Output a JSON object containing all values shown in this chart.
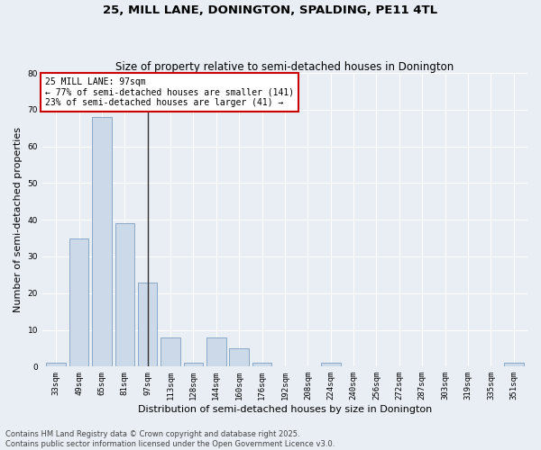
{
  "title": "25, MILL LANE, DONINGTON, SPALDING, PE11 4TL",
  "subtitle": "Size of property relative to semi-detached houses in Donington",
  "xlabel": "Distribution of semi-detached houses by size in Donington",
  "ylabel": "Number of semi-detached properties",
  "categories": [
    "33sqm",
    "49sqm",
    "65sqm",
    "81sqm",
    "97sqm",
    "113sqm",
    "128sqm",
    "144sqm",
    "160sqm",
    "176sqm",
    "192sqm",
    "208sqm",
    "224sqm",
    "240sqm",
    "256sqm",
    "272sqm",
    "287sqm",
    "303sqm",
    "319sqm",
    "335sqm",
    "351sqm"
  ],
  "values": [
    1,
    35,
    68,
    39,
    23,
    8,
    1,
    8,
    5,
    1,
    0,
    0,
    1,
    0,
    0,
    0,
    0,
    0,
    0,
    0,
    1
  ],
  "bar_color": "#ccd9e8",
  "bar_edge_color": "#7ba0c0",
  "vline_index": 4,
  "vline_color": "#333333",
  "annotation_title": "25 MILL LANE: 97sqm",
  "annotation_line1": "← 77% of semi-detached houses are smaller (141)",
  "annotation_line2": "23% of semi-detached houses are larger (41) →",
  "annotation_box_facecolor": "#ffffff",
  "annotation_box_edgecolor": "#cc0000",
  "ylim": [
    0,
    80
  ],
  "yticks": [
    0,
    10,
    20,
    30,
    40,
    50,
    60,
    70,
    80
  ],
  "footnote": "Contains HM Land Registry data © Crown copyright and database right 2025.\nContains public sector information licensed under the Open Government Licence v3.0.",
  "bg_color": "#e8eef4",
  "title_fontsize": 9.5,
  "subtitle_fontsize": 8.5,
  "tick_fontsize": 6.5,
  "label_fontsize": 8,
  "footnote_fontsize": 6,
  "annotation_fontsize": 7
}
